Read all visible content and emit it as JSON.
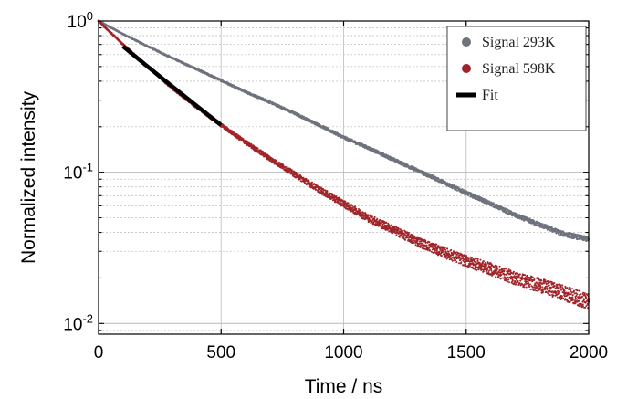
{
  "chart_data": {
    "type": "scatter",
    "xlabel": "Time / ns",
    "ylabel": "Normalized intensity",
    "xlim": [
      0,
      2000
    ],
    "ylim": [
      0.0085,
      1.0
    ],
    "yscale": "log",
    "grid": true,
    "legend_position": "top-right",
    "x_ticks": [
      {
        "value": 0,
        "label": "0"
      },
      {
        "value": 500,
        "label": "500"
      },
      {
        "value": 1000,
        "label": "1000"
      },
      {
        "value": 1500,
        "label": "1500"
      },
      {
        "value": 2000,
        "label": "2000"
      }
    ],
    "y_ticks": [
      {
        "value": 1,
        "base": "10",
        "exp": "0"
      },
      {
        "value": 0.1,
        "base": "10",
        "exp": "-1"
      },
      {
        "value": 0.01,
        "base": "10",
        "exp": "-2"
      }
    ],
    "series": [
      {
        "name": "Signal 293K",
        "color": "#6f737d",
        "marker": "circle",
        "x": [
          0,
          100,
          200,
          300,
          400,
          500,
          600,
          700,
          800,
          900,
          1000,
          1100,
          1200,
          1300,
          1400,
          1500,
          1600,
          1700,
          1800,
          1900,
          2000
        ],
        "y": [
          1.0,
          0.82,
          0.68,
          0.57,
          0.48,
          0.405,
          0.34,
          0.29,
          0.245,
          0.205,
          0.17,
          0.145,
          0.122,
          0.103,
          0.087,
          0.073,
          0.062,
          0.052,
          0.045,
          0.039,
          0.036
        ]
      },
      {
        "name": "Signal 598K",
        "color": "#a0252a",
        "marker": "circle",
        "x": [
          0,
          100,
          200,
          300,
          400,
          500,
          600,
          700,
          800,
          900,
          1000,
          1100,
          1200,
          1300,
          1400,
          1500,
          1600,
          1700,
          1800,
          1900,
          2000
        ],
        "y": [
          1.0,
          0.7,
          0.5,
          0.36,
          0.27,
          0.205,
          0.158,
          0.123,
          0.097,
          0.077,
          0.062,
          0.05,
          0.042,
          0.035,
          0.03,
          0.026,
          0.023,
          0.02,
          0.018,
          0.016,
          0.014
        ]
      },
      {
        "name": "Fit",
        "color": "#000000",
        "marker": "line",
        "x": [
          100,
          200,
          300,
          400,
          500
        ],
        "y": [
          0.68,
          0.5,
          0.37,
          0.275,
          0.205
        ]
      }
    ]
  }
}
